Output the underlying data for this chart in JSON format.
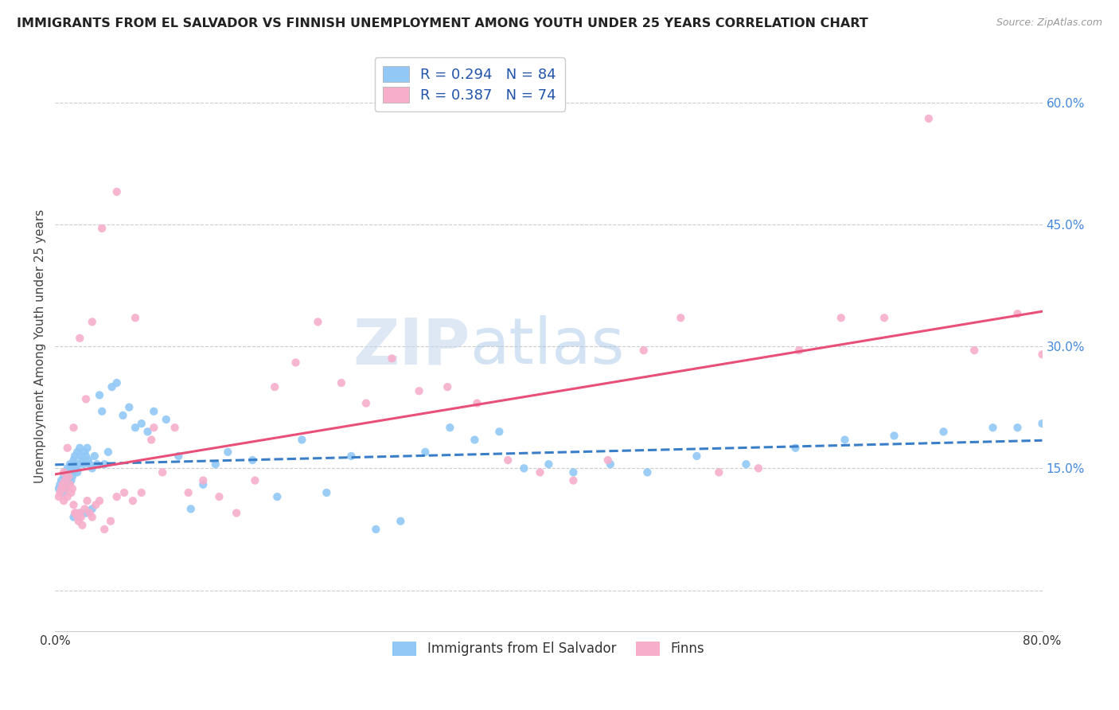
{
  "title": "IMMIGRANTS FROM EL SALVADOR VS FINNISH UNEMPLOYMENT AMONG YOUTH UNDER 25 YEARS CORRELATION CHART",
  "source": "Source: ZipAtlas.com",
  "ylabel": "Unemployment Among Youth under 25 years",
  "xlim": [
    0.0,
    0.8
  ],
  "ylim": [
    -0.05,
    0.65
  ],
  "x_ticks": [
    0.0,
    0.1,
    0.2,
    0.3,
    0.4,
    0.5,
    0.6,
    0.7,
    0.8
  ],
  "x_tick_labels": [
    "0.0%",
    "",
    "",
    "",
    "",
    "",
    "",
    "",
    "80.0%"
  ],
  "y_ticks_right": [
    0.0,
    0.15,
    0.3,
    0.45,
    0.6
  ],
  "y_tick_labels_right": [
    "",
    "15.0%",
    "30.0%",
    "45.0%",
    "60.0%"
  ],
  "legend_label_1": "R = 0.294   N = 84",
  "legend_label_2": "R = 0.387   N = 74",
  "legend_bottom_1": "Immigrants from El Salvador",
  "legend_bottom_2": "Finns",
  "color_blue": "#91C8F6",
  "color_pink": "#F7AECB",
  "color_line_blue": "#3A7EC8",
  "color_line_pink": "#E8507A",
  "watermark_color": "#C8D8EE",
  "blue_scatter_x": [
    0.003,
    0.004,
    0.005,
    0.006,
    0.007,
    0.007,
    0.008,
    0.008,
    0.009,
    0.01,
    0.01,
    0.011,
    0.012,
    0.012,
    0.013,
    0.013,
    0.014,
    0.015,
    0.015,
    0.016,
    0.016,
    0.017,
    0.018,
    0.018,
    0.019,
    0.02,
    0.021,
    0.022,
    0.023,
    0.024,
    0.025,
    0.026,
    0.027,
    0.028,
    0.03,
    0.032,
    0.034,
    0.036,
    0.038,
    0.04,
    0.043,
    0.046,
    0.05,
    0.055,
    0.06,
    0.065,
    0.07,
    0.075,
    0.08,
    0.09,
    0.1,
    0.11,
    0.12,
    0.13,
    0.14,
    0.16,
    0.18,
    0.2,
    0.22,
    0.24,
    0.26,
    0.28,
    0.3,
    0.32,
    0.34,
    0.36,
    0.38,
    0.4,
    0.42,
    0.45,
    0.48,
    0.52,
    0.56,
    0.6,
    0.64,
    0.68,
    0.72,
    0.76,
    0.78,
    0.8,
    0.015,
    0.02,
    0.025,
    0.03
  ],
  "blue_scatter_y": [
    0.125,
    0.13,
    0.135,
    0.128,
    0.12,
    0.14,
    0.145,
    0.125,
    0.13,
    0.135,
    0.15,
    0.14,
    0.145,
    0.155,
    0.135,
    0.15,
    0.14,
    0.16,
    0.145,
    0.155,
    0.165,
    0.15,
    0.145,
    0.17,
    0.155,
    0.175,
    0.165,
    0.16,
    0.155,
    0.17,
    0.165,
    0.175,
    0.16,
    0.155,
    0.15,
    0.165,
    0.155,
    0.24,
    0.22,
    0.155,
    0.17,
    0.25,
    0.255,
    0.215,
    0.225,
    0.2,
    0.205,
    0.195,
    0.22,
    0.21,
    0.165,
    0.1,
    0.13,
    0.155,
    0.17,
    0.16,
    0.115,
    0.185,
    0.12,
    0.165,
    0.075,
    0.085,
    0.17,
    0.2,
    0.185,
    0.195,
    0.15,
    0.155,
    0.145,
    0.155,
    0.145,
    0.165,
    0.155,
    0.175,
    0.185,
    0.19,
    0.195,
    0.2,
    0.2,
    0.205,
    0.09,
    0.095,
    0.095,
    0.1
  ],
  "pink_scatter_x": [
    0.003,
    0.004,
    0.005,
    0.006,
    0.007,
    0.008,
    0.009,
    0.01,
    0.011,
    0.012,
    0.013,
    0.014,
    0.015,
    0.016,
    0.017,
    0.018,
    0.019,
    0.02,
    0.021,
    0.022,
    0.024,
    0.026,
    0.028,
    0.03,
    0.033,
    0.036,
    0.04,
    0.045,
    0.05,
    0.056,
    0.063,
    0.07,
    0.078,
    0.087,
    0.097,
    0.108,
    0.12,
    0.133,
    0.147,
    0.162,
    0.178,
    0.195,
    0.213,
    0.232,
    0.252,
    0.273,
    0.295,
    0.318,
    0.342,
    0.367,
    0.393,
    0.42,
    0.448,
    0.477,
    0.507,
    0.538,
    0.57,
    0.603,
    0.637,
    0.672,
    0.708,
    0.745,
    0.78,
    0.8,
    0.007,
    0.01,
    0.015,
    0.02,
    0.025,
    0.03,
    0.038,
    0.05,
    0.065,
    0.08
  ],
  "pink_scatter_y": [
    0.115,
    0.12,
    0.125,
    0.13,
    0.11,
    0.135,
    0.125,
    0.115,
    0.14,
    0.13,
    0.12,
    0.125,
    0.105,
    0.095,
    0.095,
    0.09,
    0.085,
    0.095,
    0.09,
    0.08,
    0.1,
    0.11,
    0.095,
    0.09,
    0.105,
    0.11,
    0.075,
    0.085,
    0.115,
    0.12,
    0.11,
    0.12,
    0.185,
    0.145,
    0.2,
    0.12,
    0.135,
    0.115,
    0.095,
    0.135,
    0.25,
    0.28,
    0.33,
    0.255,
    0.23,
    0.285,
    0.245,
    0.25,
    0.23,
    0.16,
    0.145,
    0.135,
    0.16,
    0.295,
    0.335,
    0.145,
    0.15,
    0.295,
    0.335,
    0.335,
    0.58,
    0.295,
    0.34,
    0.29,
    0.145,
    0.175,
    0.2,
    0.31,
    0.235,
    0.33,
    0.445,
    0.49,
    0.335,
    0.2
  ]
}
